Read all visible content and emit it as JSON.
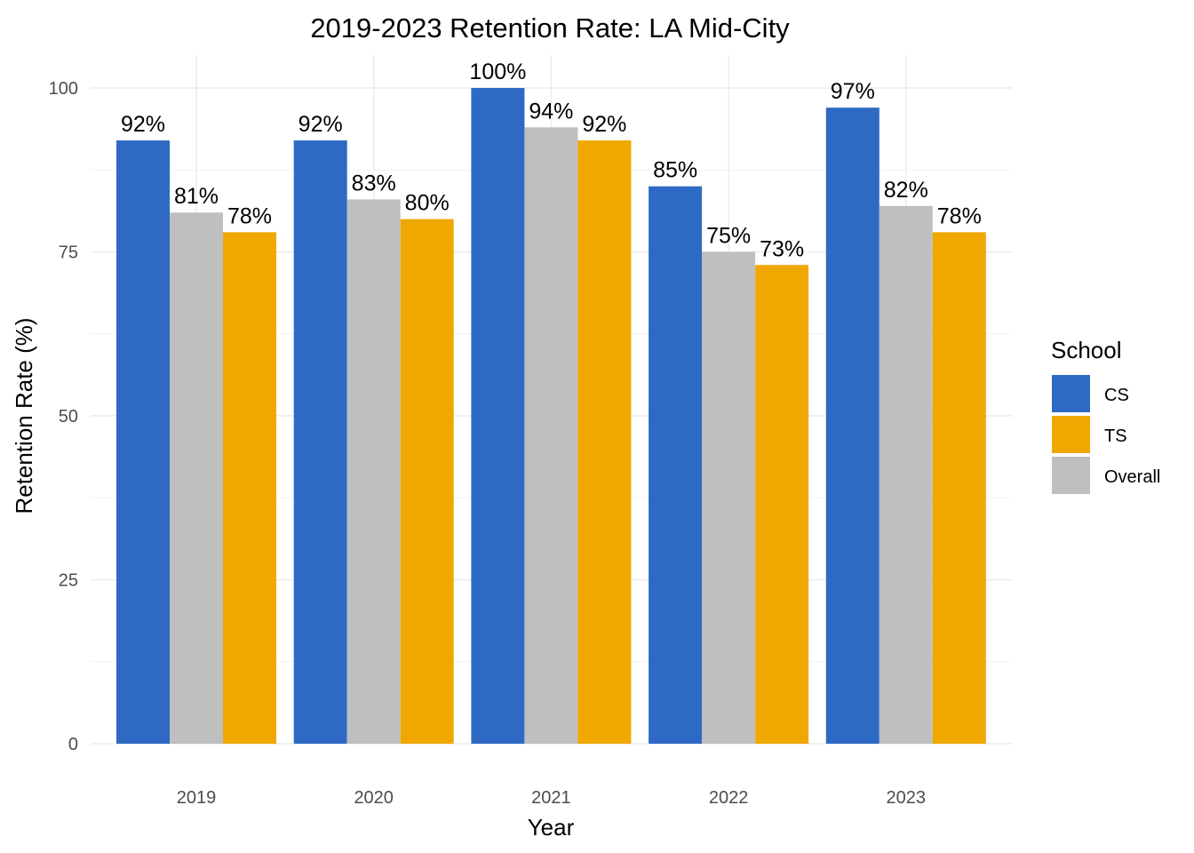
{
  "chart_data": {
    "type": "bar",
    "title": "2019-2023 Retention Rate: LA Mid-City",
    "xlabel": "Year",
    "ylabel": "Retention Rate (%)",
    "categories": [
      "2019",
      "2020",
      "2021",
      "2022",
      "2023"
    ],
    "ylim": [
      0,
      103
    ],
    "yticks": [
      0,
      25,
      50,
      75,
      100
    ],
    "grid": true,
    "legend": {
      "title": "School",
      "position": "right",
      "entries": [
        "CS",
        "TS",
        "Overall"
      ]
    },
    "series": [
      {
        "name": "CS",
        "color": "#2E6AC4",
        "values": [
          92,
          92,
          100,
          85,
          97
        ],
        "labels": [
          "92%",
          "92%",
          "100%",
          "85%",
          "97%"
        ]
      },
      {
        "name": "Overall",
        "color": "#BFBFBF",
        "values": [
          81,
          83,
          94,
          75,
          82
        ],
        "labels": [
          "81%",
          "83%",
          "94%",
          "75%",
          "82%"
        ]
      },
      {
        "name": "TS",
        "color": "#F0A800",
        "values": [
          78,
          80,
          92,
          73,
          78
        ],
        "labels": [
          "78%",
          "80%",
          "92%",
          "73%",
          "78%"
        ]
      }
    ]
  }
}
